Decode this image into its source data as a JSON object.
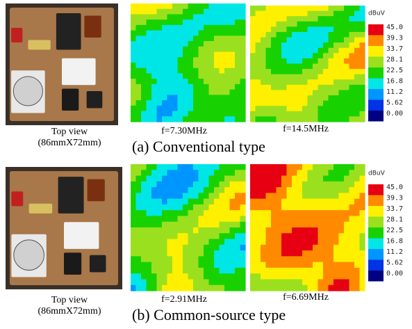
{
  "panels": [
    {
      "photo_caption": [
        "Top view",
        "(86mmX72mm)"
      ],
      "maps": [
        {
          "label": "f=7.30MHz"
        },
        {
          "label": "f=14.5MHz"
        }
      ],
      "title": "(a) Conventional type",
      "colorbar": {
        "unit": "dBuV",
        "labels": [
          "45.0",
          "39.3",
          "33.7",
          "28.1",
          "22.5",
          "16.8",
          "11.2",
          "5.62",
          "0.00"
        ]
      }
    },
    {
      "photo_caption": [
        "Top view",
        "(86mmX72mm)"
      ],
      "maps": [
        {
          "label": "f=2.91MHz"
        },
        {
          "label": "f=6.69MHz"
        }
      ],
      "title": "(b) Common-source type",
      "colorbar": {
        "unit": "dBuV",
        "labels": [
          "45.0",
          "39.3",
          "33.7",
          "28.1",
          "22.5",
          "16.8",
          "11.2",
          "5.62",
          "0.00"
        ]
      }
    }
  ]
}
